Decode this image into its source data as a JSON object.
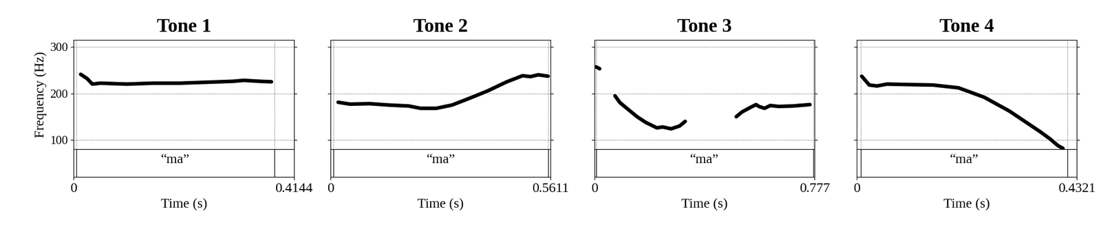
{
  "chart_data": [
    {
      "type": "line",
      "title": "Tone 1",
      "y_label": "Frequency (Hz)",
      "x_label": "Time (s)",
      "tier_label": "“ma”",
      "boundaries": [
        0.005,
        0.378
      ],
      "x": [
        0.013,
        0.025,
        0.035,
        0.05,
        0.1,
        0.15,
        0.2,
        0.25,
        0.3,
        0.32,
        0.35,
        0.372
      ],
      "values": [
        241,
        232,
        220,
        222,
        220,
        222,
        222,
        224,
        226,
        228,
        226,
        225
      ],
      "xlim": [
        0,
        0.4144
      ],
      "xticks": [
        0,
        0.4144
      ],
      "ylim": [
        80,
        315
      ],
      "yticks": [
        100,
        200,
        300
      ],
      "grid": true,
      "color": "#000000"
    },
    {
      "type": "line",
      "title": "Tone 2",
      "x_label": "Time (s)",
      "tier_label": "“ma”",
      "tick_labels": "x",
      "boundaries": [
        0.008,
        0.555
      ],
      "x": [
        0.02,
        0.05,
        0.1,
        0.15,
        0.2,
        0.23,
        0.27,
        0.31,
        0.35,
        0.4,
        0.45,
        0.49,
        0.51,
        0.53,
        0.555
      ],
      "values": [
        181,
        177,
        178,
        175,
        173,
        168,
        168,
        175,
        188,
        205,
        225,
        238,
        236,
        240,
        237
      ],
      "xlim": [
        0,
        0.5611
      ],
      "xticks": [
        0,
        0.5611
      ],
      "ylim": [
        80,
        315
      ],
      "yticks": [
        100,
        200,
        300
      ],
      "grid": true,
      "color": "#000000"
    },
    {
      "type": "line",
      "title": "Tone 3",
      "x_label": "Time (s)",
      "tier_label": "“ma”",
      "tick_labels": "x",
      "boundaries": [
        0.005,
        0.772
      ],
      "x": [
        0.005,
        0.018,
        0.04,
        0.072,
        0.09,
        0.12,
        0.15,
        0.18,
        0.2,
        0.22,
        0.24,
        0.27,
        0.3,
        0.32,
        0.4,
        0.5,
        0.52,
        0.55,
        0.57,
        0.58,
        0.6,
        0.62,
        0.65,
        0.7,
        0.76
      ],
      "values": [
        257,
        253,
        null,
        195,
        180,
        165,
        150,
        138,
        132,
        126,
        128,
        124,
        130,
        140,
        null,
        150,
        160,
        170,
        176,
        172,
        168,
        174,
        172,
        173,
        176
      ],
      "xlim": [
        0,
        0.777
      ],
      "xticks": [
        0,
        0.777
      ],
      "ylim": [
        80,
        315
      ],
      "yticks": [
        100,
        200,
        300
      ],
      "grid": true,
      "color": "#000000"
    },
    {
      "type": "line",
      "title": "Tone 4",
      "x_label": "Time (s)",
      "tier_label": "“ma”",
      "tick_labels": "x",
      "boundaries": [
        0.008,
        0.414
      ],
      "x": [
        0.01,
        0.025,
        0.04,
        0.06,
        0.1,
        0.15,
        0.2,
        0.25,
        0.3,
        0.33,
        0.36,
        0.38,
        0.395,
        0.405
      ],
      "values": [
        237,
        218,
        216,
        220,
        219,
        218,
        212,
        192,
        162,
        140,
        118,
        102,
        88,
        82
      ],
      "xlim": [
        0,
        0.4321
      ],
      "xticks": [
        0,
        0.4321
      ],
      "ylim": [
        80,
        315
      ],
      "yticks": [
        100,
        200,
        300
      ],
      "grid": true,
      "color": "#000000"
    }
  ]
}
